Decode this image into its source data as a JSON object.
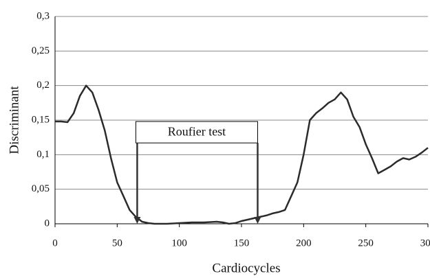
{
  "chart_data": {
    "type": "line",
    "x_label": "Cardiocycles",
    "y_label": "Discriminant",
    "x": [
      0,
      5,
      10,
      15,
      20,
      25,
      30,
      35,
      40,
      45,
      50,
      55,
      60,
      65,
      70,
      75,
      80,
      90,
      100,
      110,
      120,
      130,
      135,
      140,
      145,
      150,
      155,
      160,
      165,
      170,
      175,
      180,
      185,
      190,
      195,
      200,
      205,
      210,
      215,
      220,
      225,
      230,
      235,
      240,
      245,
      250,
      255,
      260,
      265,
      270,
      275,
      280,
      285,
      290,
      295,
      300
    ],
    "values": [
      0.148,
      0.148,
      0.147,
      0.16,
      0.185,
      0.2,
      0.19,
      0.165,
      0.135,
      0.095,
      0.06,
      0.04,
      0.02,
      0.01,
      0.003,
      0.001,
      0,
      0,
      0.001,
      0.002,
      0.002,
      0.003,
      0.002,
      0,
      0.001,
      0.004,
      0.006,
      0.008,
      0.01,
      0.012,
      0.015,
      0.017,
      0.02,
      0.04,
      0.06,
      0.1,
      0.15,
      0.16,
      0.167,
      0.175,
      0.18,
      0.19,
      0.18,
      0.155,
      0.14,
      0.115,
      0.095,
      0.073,
      0.078,
      0.083,
      0.09,
      0.095,
      0.093,
      0.097,
      0.103,
      0.11
    ],
    "color": "#2b2b2b",
    "xlim": [
      0,
      300
    ],
    "xticks": [
      0,
      50,
      100,
      150,
      200,
      250,
      300
    ],
    "ylim": [
      0,
      0.3
    ],
    "yticks": [
      0,
      {
        "value": 0.05,
        "label": "0,05"
      },
      {
        "value": 0.1,
        "label": "0,1"
      },
      {
        "value": 0.15,
        "label": "0,15"
      },
      {
        "value": 0.2,
        "label": "0,2"
      },
      {
        "value": 0.25,
        "label": "0,25"
      },
      {
        "value": 0.3,
        "label": "0,3"
      }
    ],
    "grid": true,
    "annotation": {
      "text": "Roufier test",
      "x": [
        65,
        163
      ],
      "y": [
        0.148,
        0.117
      ]
    }
  }
}
